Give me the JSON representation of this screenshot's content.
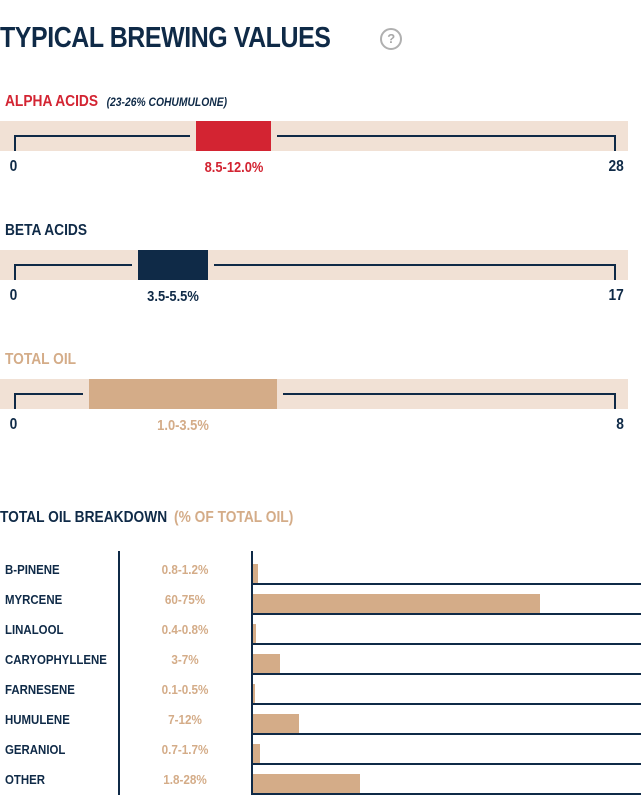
{
  "title": "TYPICAL BREWING VALUES",
  "help_icon": "question-circle-icon",
  "colors": {
    "navy": "#0f2a47",
    "red": "#d32432",
    "tan": "#d4ac88",
    "track": "#f1e1d5"
  },
  "chart_data": [
    {
      "type": "range-bar",
      "key": "alpha",
      "title": "ALPHA ACIDS",
      "note": "(23-26% COHUMULONE)",
      "min": 0,
      "max": 28,
      "range": [
        8.5,
        12.0
      ],
      "range_label": "8.5-12.0%",
      "color": "#d32432"
    },
    {
      "type": "range-bar",
      "key": "beta",
      "title": "BETA ACIDS",
      "note": "",
      "min": 0,
      "max": 17,
      "range": [
        3.5,
        5.5
      ],
      "range_label": "3.5-5.5%",
      "color": "#0f2a47"
    },
    {
      "type": "range-bar",
      "key": "oil",
      "title": "TOTAL OIL",
      "note": "",
      "min": 0,
      "max": 8,
      "range": [
        1.0,
        3.5
      ],
      "range_label": "1.0-3.5%",
      "color": "#d4ac88"
    },
    {
      "type": "bar",
      "key": "breakdown",
      "title": "TOTAL OIL BREAKDOWN",
      "subtitle": "(% OF TOTAL OIL)",
      "xlim": [
        0,
        100
      ],
      "categories": [
        "B-PINENE",
        "MYRCENE",
        "LINALOOL",
        "CARYOPHYLLENE",
        "FARNESENE",
        "HUMULENE",
        "GERANIOL",
        "OTHER"
      ],
      "range_labels": [
        "0.8-1.2%",
        "60-75%",
        "0.4-0.8%",
        "3-7%",
        "0.1-0.5%",
        "7-12%",
        "0.7-1.7%",
        "1.8-28%"
      ],
      "values": [
        1.2,
        75,
        0.8,
        7,
        0.5,
        12,
        1.7,
        28
      ]
    }
  ]
}
